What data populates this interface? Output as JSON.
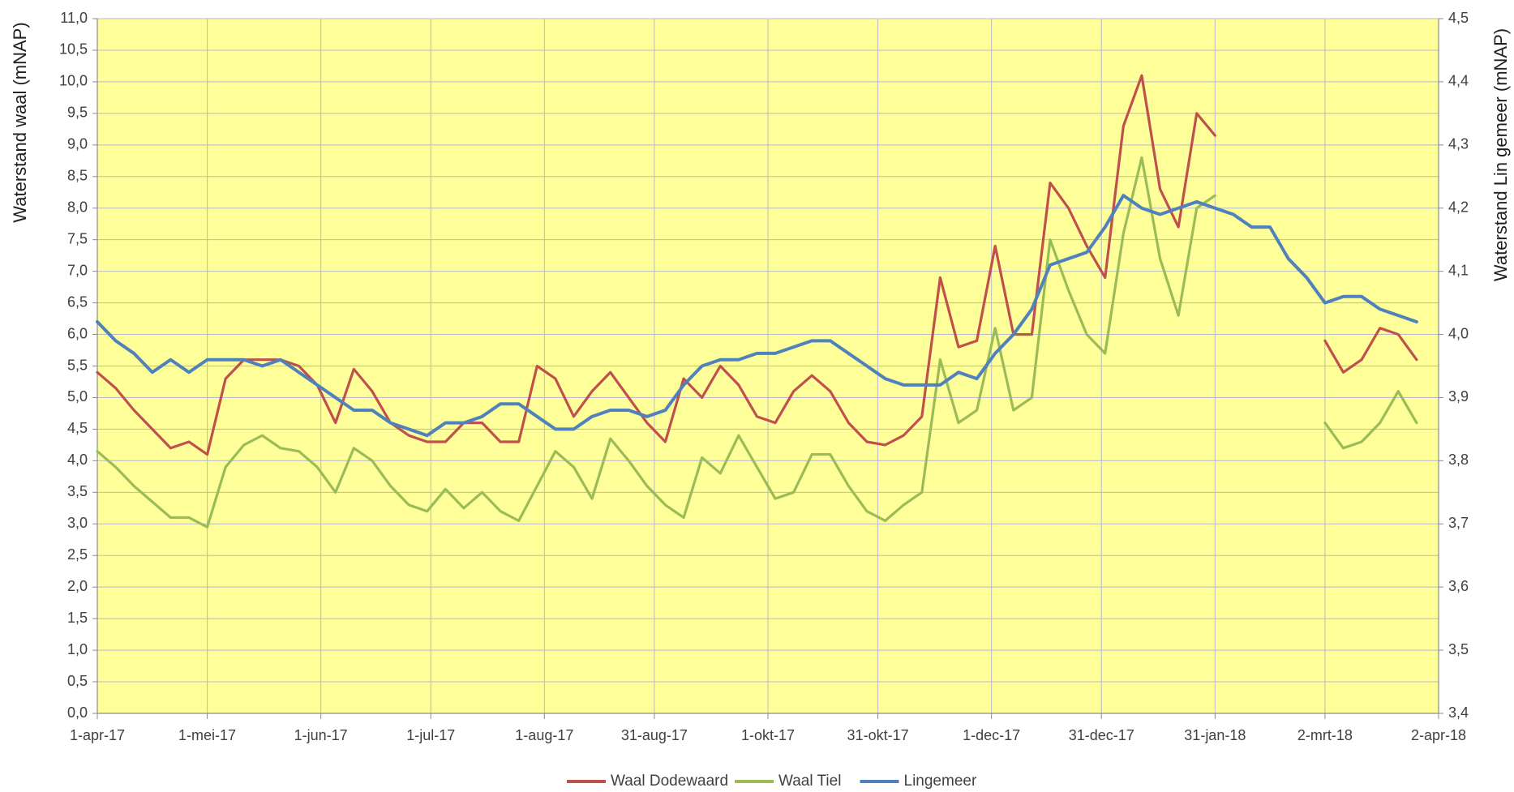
{
  "chart_data": {
    "type": "line",
    "y_title": "Waterstand waal (mNAP)",
    "y2_title": "Waterstand Lin gemeer (mNAP)",
    "background": "#ffff99",
    "grid": true,
    "legend": "bottom",
    "x": [
      "2017-04-01",
      "2017-04-06",
      "2017-04-11",
      "2017-04-16",
      "2017-04-21",
      "2017-04-26",
      "2017-05-01",
      "2017-05-06",
      "2017-05-11",
      "2017-05-16",
      "2017-05-21",
      "2017-05-26",
      "2017-05-31",
      "2017-06-05",
      "2017-06-10",
      "2017-06-15",
      "2017-06-20",
      "2017-06-25",
      "2017-06-30",
      "2017-07-05",
      "2017-07-10",
      "2017-07-15",
      "2017-07-20",
      "2017-07-25",
      "2017-07-30",
      "2017-08-04",
      "2017-08-09",
      "2017-08-14",
      "2017-08-19",
      "2017-08-24",
      "2017-08-29",
      "2017-09-03",
      "2017-09-08",
      "2017-09-13",
      "2017-09-18",
      "2017-09-23",
      "2017-09-28",
      "2017-10-03",
      "2017-10-08",
      "2017-10-13",
      "2017-10-18",
      "2017-10-23",
      "2017-10-28",
      "2017-11-02",
      "2017-11-07",
      "2017-11-12",
      "2017-11-17",
      "2017-11-22",
      "2017-11-27",
      "2017-12-02",
      "2017-12-07",
      "2017-12-12",
      "2017-12-17",
      "2017-12-22",
      "2017-12-27",
      "2018-01-01",
      "2018-01-06",
      "2018-01-11",
      "2018-01-16",
      "2018-01-21",
      "2018-01-26",
      "2018-01-31",
      "2018-02-05",
      "2018-02-10",
      "2018-02-15",
      "2018-02-20",
      "2018-02-25",
      "2018-03-02",
      "2018-03-07",
      "2018-03-12",
      "2018-03-17",
      "2018-03-22",
      "2018-03-27"
    ],
    "xlim": [
      "2017-04-01",
      "2018-04-02"
    ],
    "xticks": [
      {
        "value": "2017-04-01",
        "label": "1-apr-17"
      },
      {
        "value": "2017-05-01",
        "label": "1-mei-17"
      },
      {
        "value": "2017-06-01",
        "label": "1-jun-17"
      },
      {
        "value": "2017-07-01",
        "label": "1-jul-17"
      },
      {
        "value": "2017-08-01",
        "label": "1-aug-17"
      },
      {
        "value": "2017-08-31",
        "label": "31-aug-17"
      },
      {
        "value": "2017-10-01",
        "label": "1-okt-17"
      },
      {
        "value": "2017-10-31",
        "label": "31-okt-17"
      },
      {
        "value": "2017-12-01",
        "label": "1-dec-17"
      },
      {
        "value": "2017-12-31",
        "label": "31-dec-17"
      },
      {
        "value": "2018-01-31",
        "label": "31-jan-18"
      },
      {
        "value": "2018-03-02",
        "label": "2-mrt-18"
      },
      {
        "value": "2018-04-02",
        "label": "2-apr-18"
      }
    ],
    "ylim": [
      0,
      11
    ],
    "yticks": [
      {
        "value": 0,
        "label": "0,0"
      },
      {
        "value": 0.5,
        "label": "0,5"
      },
      {
        "value": 1,
        "label": "1,0"
      },
      {
        "value": 1.5,
        "label": "1,5"
      },
      {
        "value": 2,
        "label": "2,0"
      },
      {
        "value": 2.5,
        "label": "2,5"
      },
      {
        "value": 3,
        "label": "3,0"
      },
      {
        "value": 3.5,
        "label": "3,5"
      },
      {
        "value": 4,
        "label": "4,0"
      },
      {
        "value": 4.5,
        "label": "4,5"
      },
      {
        "value": 5,
        "label": "5,0"
      },
      {
        "value": 5.5,
        "label": "5,5"
      },
      {
        "value": 6,
        "label": "6,0"
      },
      {
        "value": 6.5,
        "label": "6,5"
      },
      {
        "value": 7,
        "label": "7,0"
      },
      {
        "value": 7.5,
        "label": "7,5"
      },
      {
        "value": 8,
        "label": "8,0"
      },
      {
        "value": 8.5,
        "label": "8,5"
      },
      {
        "value": 9,
        "label": "9,0"
      },
      {
        "value": 9.5,
        "label": "9,5"
      },
      {
        "value": 10,
        "label": "10,0"
      },
      {
        "value": 10.5,
        "label": "10,5"
      },
      {
        "value": 11,
        "label": "11,0"
      }
    ],
    "y2lim": [
      3.4,
      4.5
    ],
    "y2ticks": [
      {
        "value": 3.4,
        "label": "3,4"
      },
      {
        "value": 3.5,
        "label": "3,5"
      },
      {
        "value": 3.6,
        "label": "3,6"
      },
      {
        "value": 3.7,
        "label": "3,7"
      },
      {
        "value": 3.8,
        "label": "3,8"
      },
      {
        "value": 3.9,
        "label": "3,9"
      },
      {
        "value": 4,
        "label": "4,0"
      },
      {
        "value": 4.1,
        "label": "4,1"
      },
      {
        "value": 4.2,
        "label": "4,2"
      },
      {
        "value": 4.3,
        "label": "4,3"
      },
      {
        "value": 4.4,
        "label": "4,4"
      },
      {
        "value": 4.5,
        "label": "4,5"
      }
    ],
    "series": [
      {
        "name": "Waal Dodewaard",
        "color": "#c0504d",
        "values": [
          5.4,
          5.15,
          4.8,
          4.5,
          4.2,
          4.3,
          4.1,
          5.3,
          5.6,
          5.6,
          5.6,
          5.5,
          5.2,
          4.6,
          5.45,
          5.1,
          4.6,
          4.4,
          4.3,
          4.3,
          4.6,
          4.6,
          4.3,
          4.3,
          5.5,
          5.3,
          4.7,
          5.1,
          5.4,
          5.0,
          4.6,
          4.3,
          5.3,
          5.0,
          5.5,
          5.2,
          4.7,
          4.6,
          5.1,
          5.35,
          5.1,
          4.6,
          4.3,
          4.25,
          4.4,
          4.7,
          6.9,
          5.8,
          5.9,
          7.4,
          6.0,
          6.0,
          8.4,
          8.0,
          7.4,
          6.9,
          9.3,
          10.1,
          8.3,
          7.7,
          9.5,
          9.15,
          null,
          null,
          null,
          null,
          null,
          5.9,
          5.4,
          5.6,
          6.1,
          6.0,
          5.6
        ]
      },
      {
        "name": "Waal Tiel",
        "color": "#9bbb59",
        "values": [
          4.15,
          3.9,
          3.6,
          3.35,
          3.1,
          3.1,
          2.95,
          3.9,
          4.25,
          4.4,
          4.2,
          4.15,
          3.9,
          3.5,
          4.2,
          4.0,
          3.6,
          3.3,
          3.2,
          3.55,
          3.25,
          3.5,
          3.2,
          3.05,
          3.6,
          4.15,
          3.9,
          3.4,
          4.35,
          4.0,
          3.6,
          3.3,
          3.1,
          4.05,
          3.8,
          4.4,
          3.9,
          3.4,
          3.5,
          4.1,
          4.1,
          3.6,
          3.2,
          3.05,
          3.3,
          3.5,
          5.6,
          4.6,
          4.8,
          6.1,
          4.8,
          5.0,
          7.5,
          6.7,
          6.0,
          5.7,
          7.6,
          8.8,
          7.2,
          6.3,
          8.0,
          8.2,
          null,
          null,
          null,
          null,
          null,
          4.6,
          4.2,
          4.3,
          4.6,
          5.1,
          4.6
        ]
      },
      {
        "name": "Lingemeer",
        "color": "#4f81bd",
        "axis": "y2",
        "values": [
          4.02,
          3.99,
          3.97,
          3.94,
          3.96,
          3.94,
          3.96,
          3.96,
          3.96,
          3.95,
          3.96,
          3.94,
          3.92,
          3.9,
          3.88,
          3.88,
          3.86,
          3.85,
          3.84,
          3.86,
          3.86,
          3.87,
          3.89,
          3.89,
          3.87,
          3.85,
          3.85,
          3.87,
          3.88,
          3.88,
          3.87,
          3.88,
          3.92,
          3.95,
          3.96,
          3.96,
          3.97,
          3.97,
          3.98,
          3.99,
          3.99,
          3.97,
          3.95,
          3.93,
          3.92,
          3.92,
          3.92,
          3.94,
          3.93,
          3.97,
          4.0,
          4.04,
          4.11,
          4.12,
          4.13,
          4.17,
          4.22,
          4.2,
          4.19,
          4.2,
          4.21,
          4.2,
          4.19,
          4.17,
          4.17,
          4.12,
          4.09,
          4.05,
          4.06,
          4.06,
          4.04,
          4.03,
          4.02
        ]
      }
    ]
  }
}
